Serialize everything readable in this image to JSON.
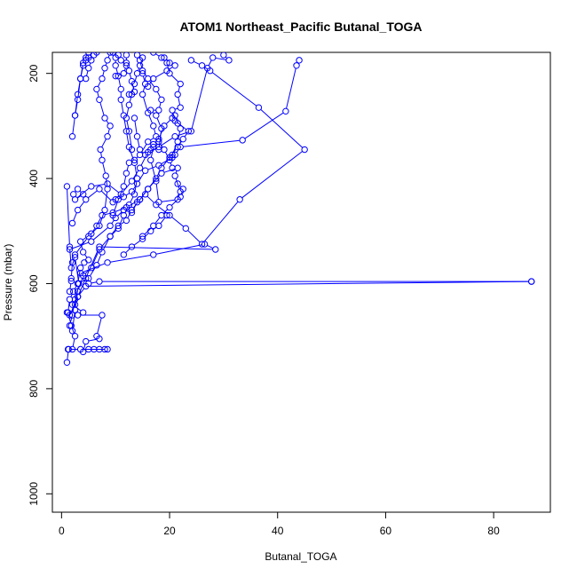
{
  "chart_data": {
    "type": "line",
    "title": "ATOM1 Northeast_Pacific Butanal_TOGA",
    "xlabel": "Butanal_TOGA",
    "ylabel": "Pressure (mbar)",
    "xlim": [
      -1.7,
      90.5
    ],
    "ylim": [
      1035,
      160
    ],
    "y_reversed": true,
    "xticks": [
      0,
      20,
      40,
      60,
      80
    ],
    "yticks": [
      200,
      400,
      600,
      800,
      1000
    ],
    "grid": false,
    "legend": "none",
    "marker": "open-circle",
    "color": "#0000ff",
    "series": [
      {
        "values": [
          [
            1.0,
            750
          ],
          [
            1.3,
            725
          ],
          [
            2.0,
            725
          ],
          [
            2.5,
            700
          ],
          [
            1.8,
            680
          ],
          [
            1.2,
            655
          ],
          [
            1.5,
            630
          ],
          [
            2.2,
            615
          ],
          [
            3.0,
            600
          ],
          [
            3.5,
            570
          ],
          [
            4.2,
            560
          ],
          [
            5.0,
            555
          ],
          [
            4.0,
            540
          ],
          [
            3.5,
            520
          ],
          [
            5.5,
            505
          ],
          [
            6.5,
            490
          ],
          [
            7.5,
            470
          ],
          [
            9.5,
            465
          ],
          [
            12.0,
            455
          ],
          [
            14.5,
            440
          ],
          [
            16.0,
            420
          ],
          [
            17.5,
            400
          ],
          [
            18.5,
            380
          ],
          [
            20.0,
            360
          ],
          [
            21.5,
            340
          ],
          [
            22.5,
            325
          ],
          [
            23.5,
            310
          ],
          [
            21.0,
            290
          ],
          [
            20.5,
            270
          ],
          [
            22.0,
            265
          ],
          [
            21.5,
            240
          ],
          [
            22.0,
            220
          ],
          [
            20.0,
            200
          ],
          [
            19.5,
            180
          ],
          [
            18.5,
            170
          ],
          [
            17.0,
            160
          ]
        ]
      },
      {
        "values": [
          [
            87.0,
            596
          ],
          [
            7.0,
            596
          ],
          [
            5.0,
            600
          ],
          [
            4.5,
            590
          ],
          [
            3.5,
            580
          ],
          [
            8.5,
            560
          ],
          [
            17.0,
            545
          ],
          [
            26.5,
            525
          ],
          [
            28.5,
            535
          ],
          [
            7.0,
            530
          ],
          [
            3.0,
            625
          ],
          [
            2.0,
            640
          ],
          [
            4.0,
            655
          ],
          [
            3.0,
            660
          ],
          [
            7.5,
            660
          ],
          [
            6.5,
            700
          ],
          [
            7.0,
            705
          ],
          [
            4.5,
            710
          ],
          [
            4.0,
            730
          ],
          [
            5.0,
            725
          ],
          [
            6.0,
            725
          ],
          [
            7.0,
            725
          ],
          [
            8.0,
            725
          ],
          [
            8.5,
            725
          ],
          [
            3.5,
            725
          ],
          [
            1.2,
            725
          ]
        ]
      },
      {
        "values": [
          [
            1.5,
            680
          ],
          [
            2.0,
            660
          ],
          [
            2.5,
            630
          ],
          [
            3.0,
            625
          ],
          [
            4.5,
            605
          ],
          [
            87.0,
            596
          ]
        ]
      },
      {
        "values": [
          [
            1.0,
            415
          ],
          [
            1.5,
            530
          ],
          [
            1.8,
            570
          ],
          [
            2.5,
            550
          ],
          [
            3.2,
            600
          ],
          [
            2.5,
            640
          ],
          [
            1.5,
            660
          ],
          [
            1.0,
            655
          ]
        ]
      },
      {
        "values": [
          [
            2.2,
            430
          ],
          [
            3.0,
            420
          ],
          [
            4.0,
            430
          ],
          [
            2.5,
            440
          ],
          [
            5.5,
            415
          ],
          [
            8.5,
            410
          ],
          [
            11.0,
            430
          ],
          [
            13.0,
            405
          ],
          [
            14.5,
            380
          ],
          [
            16.0,
            350
          ],
          [
            18.0,
            340
          ],
          [
            21.0,
            320
          ],
          [
            24.0,
            310
          ],
          [
            27.0,
            190
          ],
          [
            28.0,
            170
          ],
          [
            31.0,
            175
          ],
          [
            30.0,
            165
          ]
        ]
      },
      {
        "values": [
          [
            2.0,
            485
          ],
          [
            3.0,
            460
          ],
          [
            4.5,
            440
          ],
          [
            7.0,
            420
          ],
          [
            9.5,
            445
          ],
          [
            10.0,
            440
          ],
          [
            11.5,
            435
          ],
          [
            13.0,
            425
          ],
          [
            14.0,
            410
          ],
          [
            15.5,
            385
          ],
          [
            18.0,
            375
          ],
          [
            20.5,
            360
          ],
          [
            21.0,
            355
          ],
          [
            22.0,
            340
          ],
          [
            33.5,
            327
          ],
          [
            41.5,
            272
          ],
          [
            43.5,
            185
          ],
          [
            44.0,
            175
          ]
        ]
      },
      {
        "values": [
          [
            1.5,
            535
          ],
          [
            5.5,
            520
          ],
          [
            9.0,
            490
          ],
          [
            10.0,
            475
          ],
          [
            11.5,
            460
          ],
          [
            13.0,
            465
          ],
          [
            14.0,
            445
          ],
          [
            15.5,
            430
          ],
          [
            17.5,
            450
          ],
          [
            20.0,
            470
          ],
          [
            23.0,
            495
          ],
          [
            26.0,
            525
          ],
          [
            33.0,
            440
          ],
          [
            45.0,
            345
          ],
          [
            36.5,
            265
          ],
          [
            27.5,
            195
          ],
          [
            26.0,
            185
          ],
          [
            24.0,
            175
          ]
        ]
      },
      {
        "values": [
          [
            1.5,
            615
          ],
          [
            1.8,
            595
          ],
          [
            3.0,
            600
          ],
          [
            5.0,
            590
          ],
          [
            6.5,
            565
          ],
          [
            7.5,
            540
          ],
          [
            9.0,
            510
          ],
          [
            10.5,
            490
          ],
          [
            12.0,
            480
          ],
          [
            13.0,
            460
          ],
          [
            14.5,
            440
          ],
          [
            16.0,
            420
          ],
          [
            18.5,
            390
          ],
          [
            21.5,
            380
          ],
          [
            21.0,
            395
          ],
          [
            22.0,
            425
          ],
          [
            21.5,
            440
          ],
          [
            18.0,
            445
          ],
          [
            17.5,
            405
          ],
          [
            16.5,
            365
          ],
          [
            17.0,
            340
          ],
          [
            18.0,
            345
          ],
          [
            18.5,
            305
          ],
          [
            17.5,
            280
          ],
          [
            16.5,
            270
          ],
          [
            18.0,
            270
          ],
          [
            18.5,
            250
          ],
          [
            17.5,
            230
          ],
          [
            16.0,
            210
          ],
          [
            15.0,
            195
          ],
          [
            14.5,
            175
          ],
          [
            14.0,
            165
          ]
        ]
      },
      {
        "values": [
          [
            1.8,
            590
          ],
          [
            2.0,
            560
          ],
          [
            2.5,
            545
          ],
          [
            5.0,
            510
          ],
          [
            7.0,
            490
          ],
          [
            8.0,
            460
          ],
          [
            8.5,
            420
          ],
          [
            8.2,
            395
          ],
          [
            7.5,
            365
          ],
          [
            7.2,
            345
          ],
          [
            8.5,
            320
          ],
          [
            9.0,
            300
          ],
          [
            8.0,
            285
          ],
          [
            7.0,
            250
          ],
          [
            6.5,
            230
          ],
          [
            7.5,
            210
          ],
          [
            8.0,
            190
          ],
          [
            8.5,
            175
          ],
          [
            9.0,
            160
          ]
        ]
      },
      {
        "values": [
          [
            2.0,
            690
          ],
          [
            2.5,
            650
          ],
          [
            3.0,
            615
          ],
          [
            4.0,
            585
          ],
          [
            5.5,
            570
          ],
          [
            7.0,
            535
          ],
          [
            9.0,
            510
          ],
          [
            10.5,
            495
          ],
          [
            11.5,
            470
          ],
          [
            12.5,
            450
          ],
          [
            13.5,
            430
          ],
          [
            14.0,
            400
          ],
          [
            13.5,
            370
          ],
          [
            12.5,
            340
          ],
          [
            12.0,
            310
          ],
          [
            11.5,
            280
          ],
          [
            11.0,
            250
          ],
          [
            11.0,
            230
          ],
          [
            10.5,
            205
          ],
          [
            10.0,
            185
          ],
          [
            10.0,
            170
          ],
          [
            9.5,
            160
          ]
        ]
      },
      {
        "values": [
          [
            2.0,
            320
          ],
          [
            2.5,
            280
          ],
          [
            3.0,
            250
          ],
          [
            3.5,
            210
          ],
          [
            4.0,
            180
          ],
          [
            4.5,
            170
          ],
          [
            5.0,
            160
          ]
        ]
      },
      {
        "values": [
          [
            2.5,
            280
          ],
          [
            3.0,
            240
          ],
          [
            3.5,
            210
          ],
          [
            4.0,
            185
          ],
          [
            4.5,
            175
          ],
          [
            5.0,
            170
          ]
        ]
      },
      {
        "values": [
          [
            4.5,
            210
          ],
          [
            5.0,
            190
          ],
          [
            5.5,
            175
          ],
          [
            6.0,
            165
          ],
          [
            6.5,
            160
          ]
        ]
      },
      {
        "values": [
          [
            10.0,
            205
          ],
          [
            11.5,
            200
          ],
          [
            12.0,
            185
          ],
          [
            11.0,
            175
          ],
          [
            10.5,
            165
          ]
        ]
      },
      {
        "values": [
          [
            12.5,
            240
          ],
          [
            13.5,
            235
          ],
          [
            13.0,
            215
          ],
          [
            12.5,
            195
          ],
          [
            12.0,
            180
          ],
          [
            12.0,
            165
          ]
        ]
      },
      {
        "values": [
          [
            15.0,
            200
          ],
          [
            15.5,
            220
          ],
          [
            15.0,
            240
          ],
          [
            16.0,
            275
          ],
          [
            17.0,
            300
          ],
          [
            17.5,
            320
          ],
          [
            16.0,
            330
          ],
          [
            14.5,
            355
          ],
          [
            13.5,
            365
          ],
          [
            12.5,
            370
          ],
          [
            12.0,
            390
          ],
          [
            11.5,
            415
          ],
          [
            10.5,
            440
          ],
          [
            9.5,
            470
          ]
        ]
      },
      {
        "values": [
          [
            13.5,
            285
          ],
          [
            14.0,
            320
          ],
          [
            14.5,
            345
          ],
          [
            15.5,
            355
          ],
          [
            16.5,
            345
          ],
          [
            17.0,
            335
          ],
          [
            18.0,
            325
          ],
          [
            19.0,
            300
          ],
          [
            20.5,
            285
          ],
          [
            21.0,
            280
          ],
          [
            21.5,
            295
          ],
          [
            22.0,
            305
          ],
          [
            21.5,
            330
          ],
          [
            20.5,
            355
          ]
        ]
      },
      {
        "values": [
          [
            13.0,
            345
          ],
          [
            12.5,
            310
          ],
          [
            12.0,
            285
          ],
          [
            12.5,
            260
          ],
          [
            13.0,
            240
          ],
          [
            13.5,
            220
          ],
          [
            14.0,
            200
          ],
          [
            14.5,
            185
          ],
          [
            15.0,
            170
          ]
        ]
      },
      {
        "values": [
          [
            19.0,
            170
          ],
          [
            20.0,
            180
          ],
          [
            21.0,
            185
          ],
          [
            19.5,
            195
          ],
          [
            17.0,
            210
          ],
          [
            16.0,
            225
          ]
        ]
      },
      {
        "values": [
          [
            20.5,
            380
          ],
          [
            20.0,
            365
          ],
          [
            19.0,
            345
          ],
          [
            18.0,
            330
          ]
        ]
      },
      {
        "values": [
          [
            15.0,
            510
          ],
          [
            17.0,
            490
          ],
          [
            18.5,
            470
          ],
          [
            20.0,
            455
          ],
          [
            22.0,
            435
          ],
          [
            22.5,
            420
          ],
          [
            21.5,
            410
          ]
        ]
      },
      {
        "values": [
          [
            11.5,
            545
          ],
          [
            13.0,
            530
          ],
          [
            15.0,
            515
          ],
          [
            16.5,
            500
          ],
          [
            18.0,
            490
          ],
          [
            19.5,
            470
          ]
        ]
      }
    ]
  }
}
